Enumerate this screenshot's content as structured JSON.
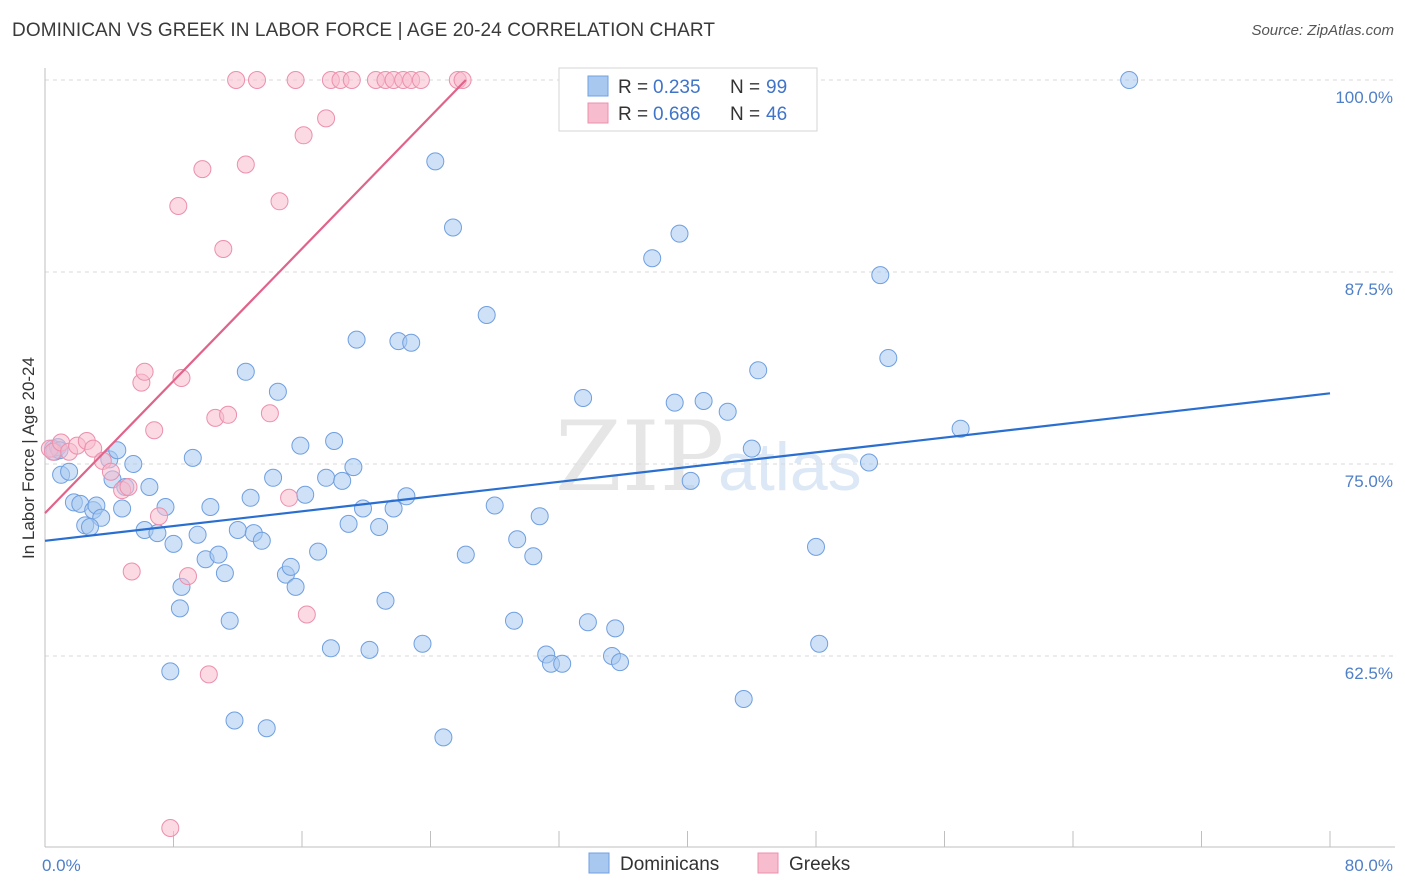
{
  "title": "DOMINICAN VS GREEK IN LABOR FORCE | AGE 20-24 CORRELATION CHART",
  "source": "Source: ZipAtlas.com",
  "colors": {
    "dominicans_fill": "#a8c8f0",
    "dominicans_stroke": "#6f9fe0",
    "dominicans_line": "#2a6fd0",
    "greeks_fill": "#f7bccd",
    "greeks_stroke": "#ec8fac",
    "greeks_line": "#e0638a",
    "grid": "#d9d9d9",
    "tick_label": "#4f7fc7"
  },
  "legend": {
    "rows": [
      {
        "r_label": "R = ",
        "r_value": "0.235",
        "n_label": "N = ",
        "n_value": "99",
        "series": "dominicans"
      },
      {
        "r_label": "R = ",
        "r_value": "0.686",
        "n_label": "N = ",
        "n_value": "46",
        "series": "greeks"
      }
    ]
  },
  "bottom_legend": [
    "Dominicans",
    "Greeks"
  ],
  "watermark": {
    "zip": "ZIP",
    "atlas": "atlas"
  },
  "chart_data": {
    "type": "scatter",
    "xlabel": "",
    "ylabel": "In Labor Force | Age 20-24",
    "xlim": [
      0,
      80
    ],
    "ylim": [
      49.5,
      101
    ],
    "x_tick_labels": [
      {
        "value": 0,
        "label": "0.0%"
      },
      {
        "value": 80,
        "label": "80.0%"
      }
    ],
    "y_tick_labels": [
      {
        "value": 100,
        "label": "100.0%"
      },
      {
        "value": 87.5,
        "label": "87.5%"
      },
      {
        "value": 75,
        "label": "75.0%"
      },
      {
        "value": 62.5,
        "label": "62.5%"
      }
    ],
    "series": [
      {
        "name": "Dominicans",
        "R": 0.235,
        "N": 99,
        "trend": {
          "x0": 0,
          "y0": 70.0,
          "x1": 80,
          "y1": 79.6
        },
        "points": [
          [
            0.5,
            76.0
          ],
          [
            0.6,
            75.8
          ],
          [
            0.8,
            76.1
          ],
          [
            1.0,
            74.3
          ],
          [
            1.5,
            74.5
          ],
          [
            1.8,
            72.5
          ],
          [
            2.2,
            72.4
          ],
          [
            2.5,
            71.0
          ],
          [
            3.0,
            72.0
          ],
          [
            3.2,
            72.3
          ],
          [
            3.5,
            71.5
          ],
          [
            4.0,
            75.3
          ],
          [
            4.2,
            74.0
          ],
          [
            4.5,
            75.9
          ],
          [
            4.8,
            72.1
          ],
          [
            5.0,
            73.5
          ],
          [
            5.5,
            75.0
          ],
          [
            6.2,
            70.7
          ],
          [
            6.5,
            73.5
          ],
          [
            7.0,
            70.5
          ],
          [
            7.5,
            72.2
          ],
          [
            8.0,
            69.8
          ],
          [
            8.5,
            67.0
          ],
          [
            9.2,
            75.4
          ],
          [
            9.5,
            70.4
          ],
          [
            10.0,
            68.8
          ],
          [
            10.3,
            72.2
          ],
          [
            10.8,
            69.1
          ],
          [
            11.2,
            67.9
          ],
          [
            11.5,
            64.8
          ],
          [
            11.8,
            58.3
          ],
          [
            12.0,
            70.7
          ],
          [
            12.5,
            81.0
          ],
          [
            12.8,
            72.8
          ],
          [
            13.0,
            70.5
          ],
          [
            13.5,
            70.0
          ],
          [
            13.8,
            57.8
          ],
          [
            14.2,
            74.1
          ],
          [
            14.5,
            79.7
          ],
          [
            15.0,
            67.8
          ],
          [
            15.3,
            68.3
          ],
          [
            15.6,
            67.0
          ],
          [
            15.9,
            76.2
          ],
          [
            16.2,
            73.0
          ],
          [
            17.0,
            69.3
          ],
          [
            17.5,
            74.1
          ],
          [
            17.8,
            63.0
          ],
          [
            18.0,
            76.5
          ],
          [
            18.5,
            73.9
          ],
          [
            18.9,
            71.1
          ],
          [
            19.2,
            74.8
          ],
          [
            19.4,
            83.1
          ],
          [
            19.8,
            72.1
          ],
          [
            20.2,
            62.9
          ],
          [
            20.8,
            70.9
          ],
          [
            21.2,
            66.1
          ],
          [
            21.7,
            72.1
          ],
          [
            22.0,
            83.0
          ],
          [
            22.5,
            72.9
          ],
          [
            22.8,
            82.9
          ],
          [
            23.5,
            63.3
          ],
          [
            24.3,
            94.7
          ],
          [
            24.8,
            57.2
          ],
          [
            25.4,
            90.4
          ],
          [
            26.2,
            69.1
          ],
          [
            27.5,
            84.7
          ],
          [
            28.0,
            72.3
          ],
          [
            29.2,
            64.8
          ],
          [
            29.4,
            70.1
          ],
          [
            30.4,
            69.0
          ],
          [
            30.8,
            71.6
          ],
          [
            31.2,
            62.6
          ],
          [
            31.5,
            62.0
          ],
          [
            32.2,
            62.0
          ],
          [
            33.5,
            79.3
          ],
          [
            33.8,
            64.7
          ],
          [
            35.3,
            62.5
          ],
          [
            35.5,
            64.3
          ],
          [
            35.8,
            62.1
          ],
          [
            37.8,
            88.4
          ],
          [
            39.2,
            79.0
          ],
          [
            39.5,
            90.0
          ],
          [
            40.2,
            73.9
          ],
          [
            41.0,
            79.1
          ],
          [
            42.5,
            78.4
          ],
          [
            43.5,
            59.7
          ],
          [
            44.0,
            76.0
          ],
          [
            44.4,
            81.1
          ],
          [
            48.0,
            69.6
          ],
          [
            48.2,
            63.3
          ],
          [
            51.3,
            75.1
          ],
          [
            52.0,
            87.3
          ],
          [
            52.5,
            81.9
          ],
          [
            57.0,
            77.3
          ],
          [
            67.5,
            100.0
          ],
          [
            0.9,
            75.9
          ],
          [
            2.8,
            70.9
          ],
          [
            7.8,
            61.5
          ],
          [
            8.4,
            65.6
          ]
        ]
      },
      {
        "name": "Greeks",
        "R": 0.686,
        "N": 46,
        "trend": {
          "x0": 0,
          "y0": 71.8,
          "x1": 26.2,
          "y1": 100.0
        },
        "points": [
          [
            0.3,
            76.0
          ],
          [
            0.5,
            75.8
          ],
          [
            1.0,
            76.4
          ],
          [
            1.5,
            75.8
          ],
          [
            2.0,
            76.2
          ],
          [
            2.6,
            76.5
          ],
          [
            3.0,
            76.0
          ],
          [
            3.6,
            75.2
          ],
          [
            4.1,
            74.5
          ],
          [
            4.8,
            73.3
          ],
          [
            5.2,
            73.5
          ],
          [
            5.4,
            68.0
          ],
          [
            6.0,
            80.3
          ],
          [
            6.2,
            81.0
          ],
          [
            6.8,
            77.2
          ],
          [
            7.1,
            71.6
          ],
          [
            7.8,
            51.3
          ],
          [
            8.3,
            91.8
          ],
          [
            8.5,
            80.6
          ],
          [
            8.9,
            67.7
          ],
          [
            9.8,
            94.2
          ],
          [
            10.2,
            61.3
          ],
          [
            10.6,
            78.0
          ],
          [
            11.1,
            89.0
          ],
          [
            11.4,
            78.2
          ],
          [
            11.9,
            100.0
          ],
          [
            12.5,
            94.5
          ],
          [
            13.2,
            100.0
          ],
          [
            14.0,
            78.3
          ],
          [
            14.6,
            92.1
          ],
          [
            15.2,
            72.8
          ],
          [
            15.6,
            100.0
          ],
          [
            16.1,
            96.4
          ],
          [
            16.3,
            65.2
          ],
          [
            17.5,
            97.5
          ],
          [
            17.8,
            100.0
          ],
          [
            18.4,
            100.0
          ],
          [
            19.1,
            100.0
          ],
          [
            20.6,
            100.0
          ],
          [
            21.2,
            100.0
          ],
          [
            21.7,
            100.0
          ],
          [
            22.3,
            100.0
          ],
          [
            22.8,
            100.0
          ],
          [
            23.4,
            100.0
          ],
          [
            25.7,
            100.0
          ],
          [
            26.0,
            100.0
          ]
        ]
      }
    ]
  }
}
